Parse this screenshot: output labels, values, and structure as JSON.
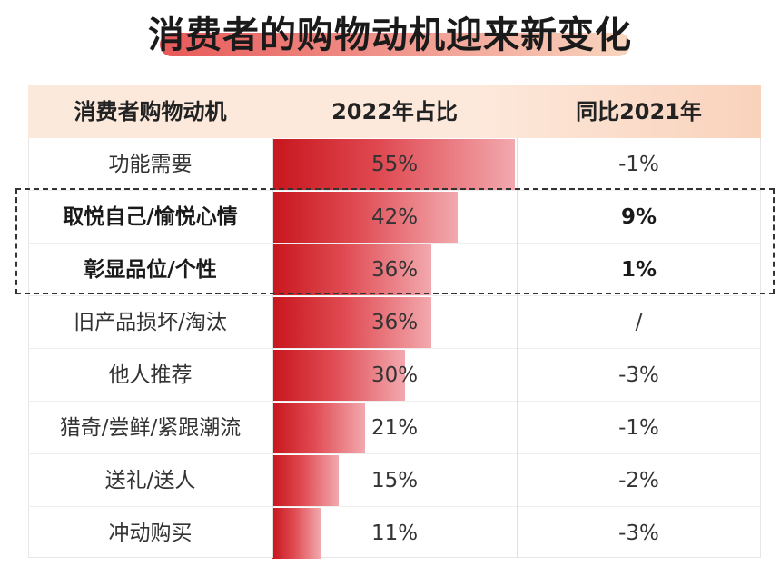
{
  "title": "消费者的购物动机迎来新变化",
  "table": {
    "headers": [
      "消费者购物动机",
      "2022年占比",
      "同比2021年"
    ]
  },
  "chart_data": {
    "type": "bar",
    "orientation": "horizontal",
    "categories": [
      "功能需要",
      "取悦自己/愉悦心情",
      "彰显品位/个性",
      "旧产品损坏/淘汰",
      "他人推荐",
      "猎奇/尝鲜/紧跟潮流",
      "送礼/送人",
      "冲动购买"
    ],
    "values": [
      55,
      42,
      36,
      36,
      30,
      21,
      15,
      11
    ],
    "value_labels": [
      "55%",
      "42%",
      "36%",
      "36%",
      "30%",
      "21%",
      "15%",
      "11%"
    ],
    "yoy": [
      "-1%",
      "9%",
      "1%",
      "/",
      "-3%",
      "-1%",
      "-2%",
      "-3%"
    ],
    "highlighted": [
      false,
      true,
      true,
      false,
      false,
      false,
      false,
      false
    ],
    "xlim": [
      0,
      60
    ],
    "colors": {
      "bar_start": "#c8161d",
      "bar_end": "#f2a9ae",
      "header_bg": "#fbe9dc"
    }
  }
}
